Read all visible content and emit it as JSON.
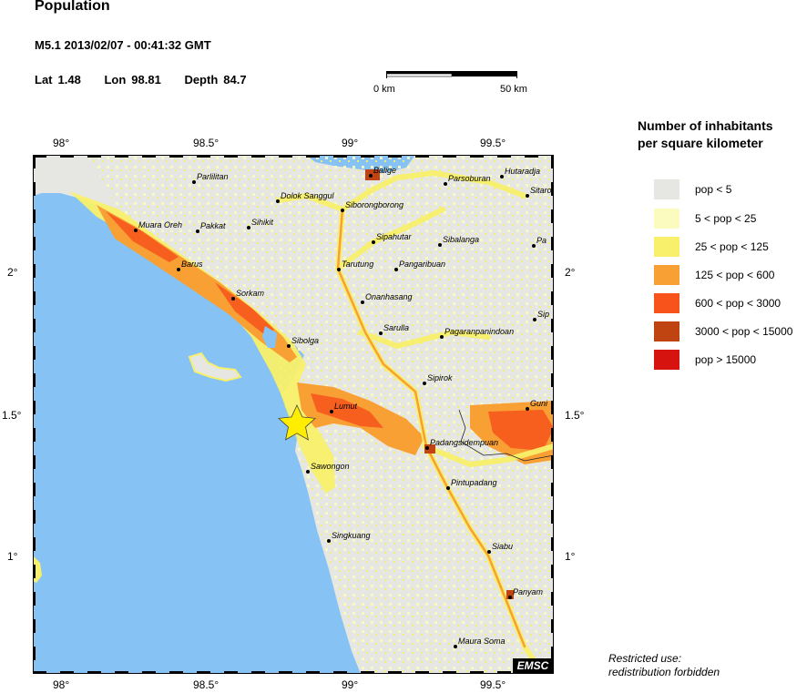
{
  "header": {
    "title": "Population",
    "event": "M5.1  2013/02/07 - 00:41:32 GMT",
    "lat_label": "Lat",
    "lat_value": "1.48",
    "lon_label": "Lon",
    "lon_value": "98.81",
    "depth_label": "Depth",
    "depth_value": "84.7"
  },
  "scale": {
    "left_label": "0 km",
    "right_label": "50 km"
  },
  "legend": {
    "title_line1": "Number of inhabitants",
    "title_line2": "per square kilometer",
    "items": [
      {
        "label": "pop < 5",
        "color": "#e6e6e2"
      },
      {
        "label": "5 < pop < 25",
        "color": "#fbfbc0"
      },
      {
        "label": "25 < pop < 125",
        "color": "#f8f06a"
      },
      {
        "label": "125 < pop < 600",
        "color": "#f9a035"
      },
      {
        "label": "600 < pop < 3000",
        "color": "#f7531b"
      },
      {
        "label": "3000 < pop < 15000",
        "color": "#c04412"
      },
      {
        "label": "pop > 15000",
        "color": "#d7130f"
      }
    ]
  },
  "axes": {
    "x_ticks": [
      "98°",
      "98.5°",
      "99°",
      "99.5°"
    ],
    "y_ticks": [
      "2°",
      "1.5°",
      "1°"
    ]
  },
  "places": [
    "Parlilitan",
    "Balige",
    "Parsoburan",
    "Hutaradja",
    "Sitaro",
    "Dolok Sanggul",
    "Siborongborong",
    "Muara Oreh",
    "Pakkat",
    "Sihikit",
    "Sipahutar",
    "Sibalanga",
    "Pa",
    "Barus",
    "Tarutung",
    "Pangaribuan",
    "Sorkam",
    "Onanhasang",
    "Sarulla",
    "Pagaranpanindoan",
    "Sip",
    "Sibolga",
    "Sipirok",
    "Lumut",
    "Guni",
    "Padangsidempuan",
    "Sawongon",
    "Pintupadang",
    "Singkuang",
    "Siabu",
    "Panyam",
    "Maura Soma"
  ],
  "colors": {
    "sea": "#86c3f4",
    "low": "#e6e6e2",
    "star": "#ffee00"
  },
  "badge": "EMSC",
  "notice": {
    "line1": "Restricted use:",
    "line2": "redistribution forbidden"
  }
}
